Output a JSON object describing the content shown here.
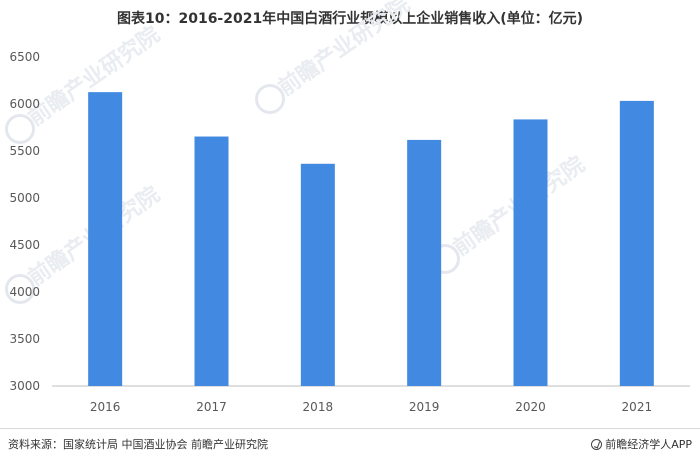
{
  "title": "图表10：2016-2021年中国白酒行业规模以上企业销售收入(单位：亿元)",
  "source": "资料来源：国家统计局 中国酒业协会 前瞻产业研究院",
  "brand": "前瞻经济学人APP",
  "watermark": "前瞻产业研究院",
  "icons": {
    "brand": "brand-logo-icon",
    "watermark": "watermark-logo-icon"
  },
  "colors": {
    "bar": "#4189e1",
    "axis": "#bfbfbf",
    "text": "#595959"
  },
  "chart_data": {
    "type": "bar",
    "categories": [
      "2016",
      "2017",
      "2018",
      "2019",
      "2020",
      "2021"
    ],
    "values": [
      6126,
      5654,
      5364,
      5618,
      5836,
      6033
    ],
    "ylim": [
      3000,
      6500
    ],
    "yticks": [
      3000,
      3500,
      4000,
      4500,
      5000,
      5500,
      6000,
      6500
    ],
    "grid": false,
    "legend": "none"
  }
}
